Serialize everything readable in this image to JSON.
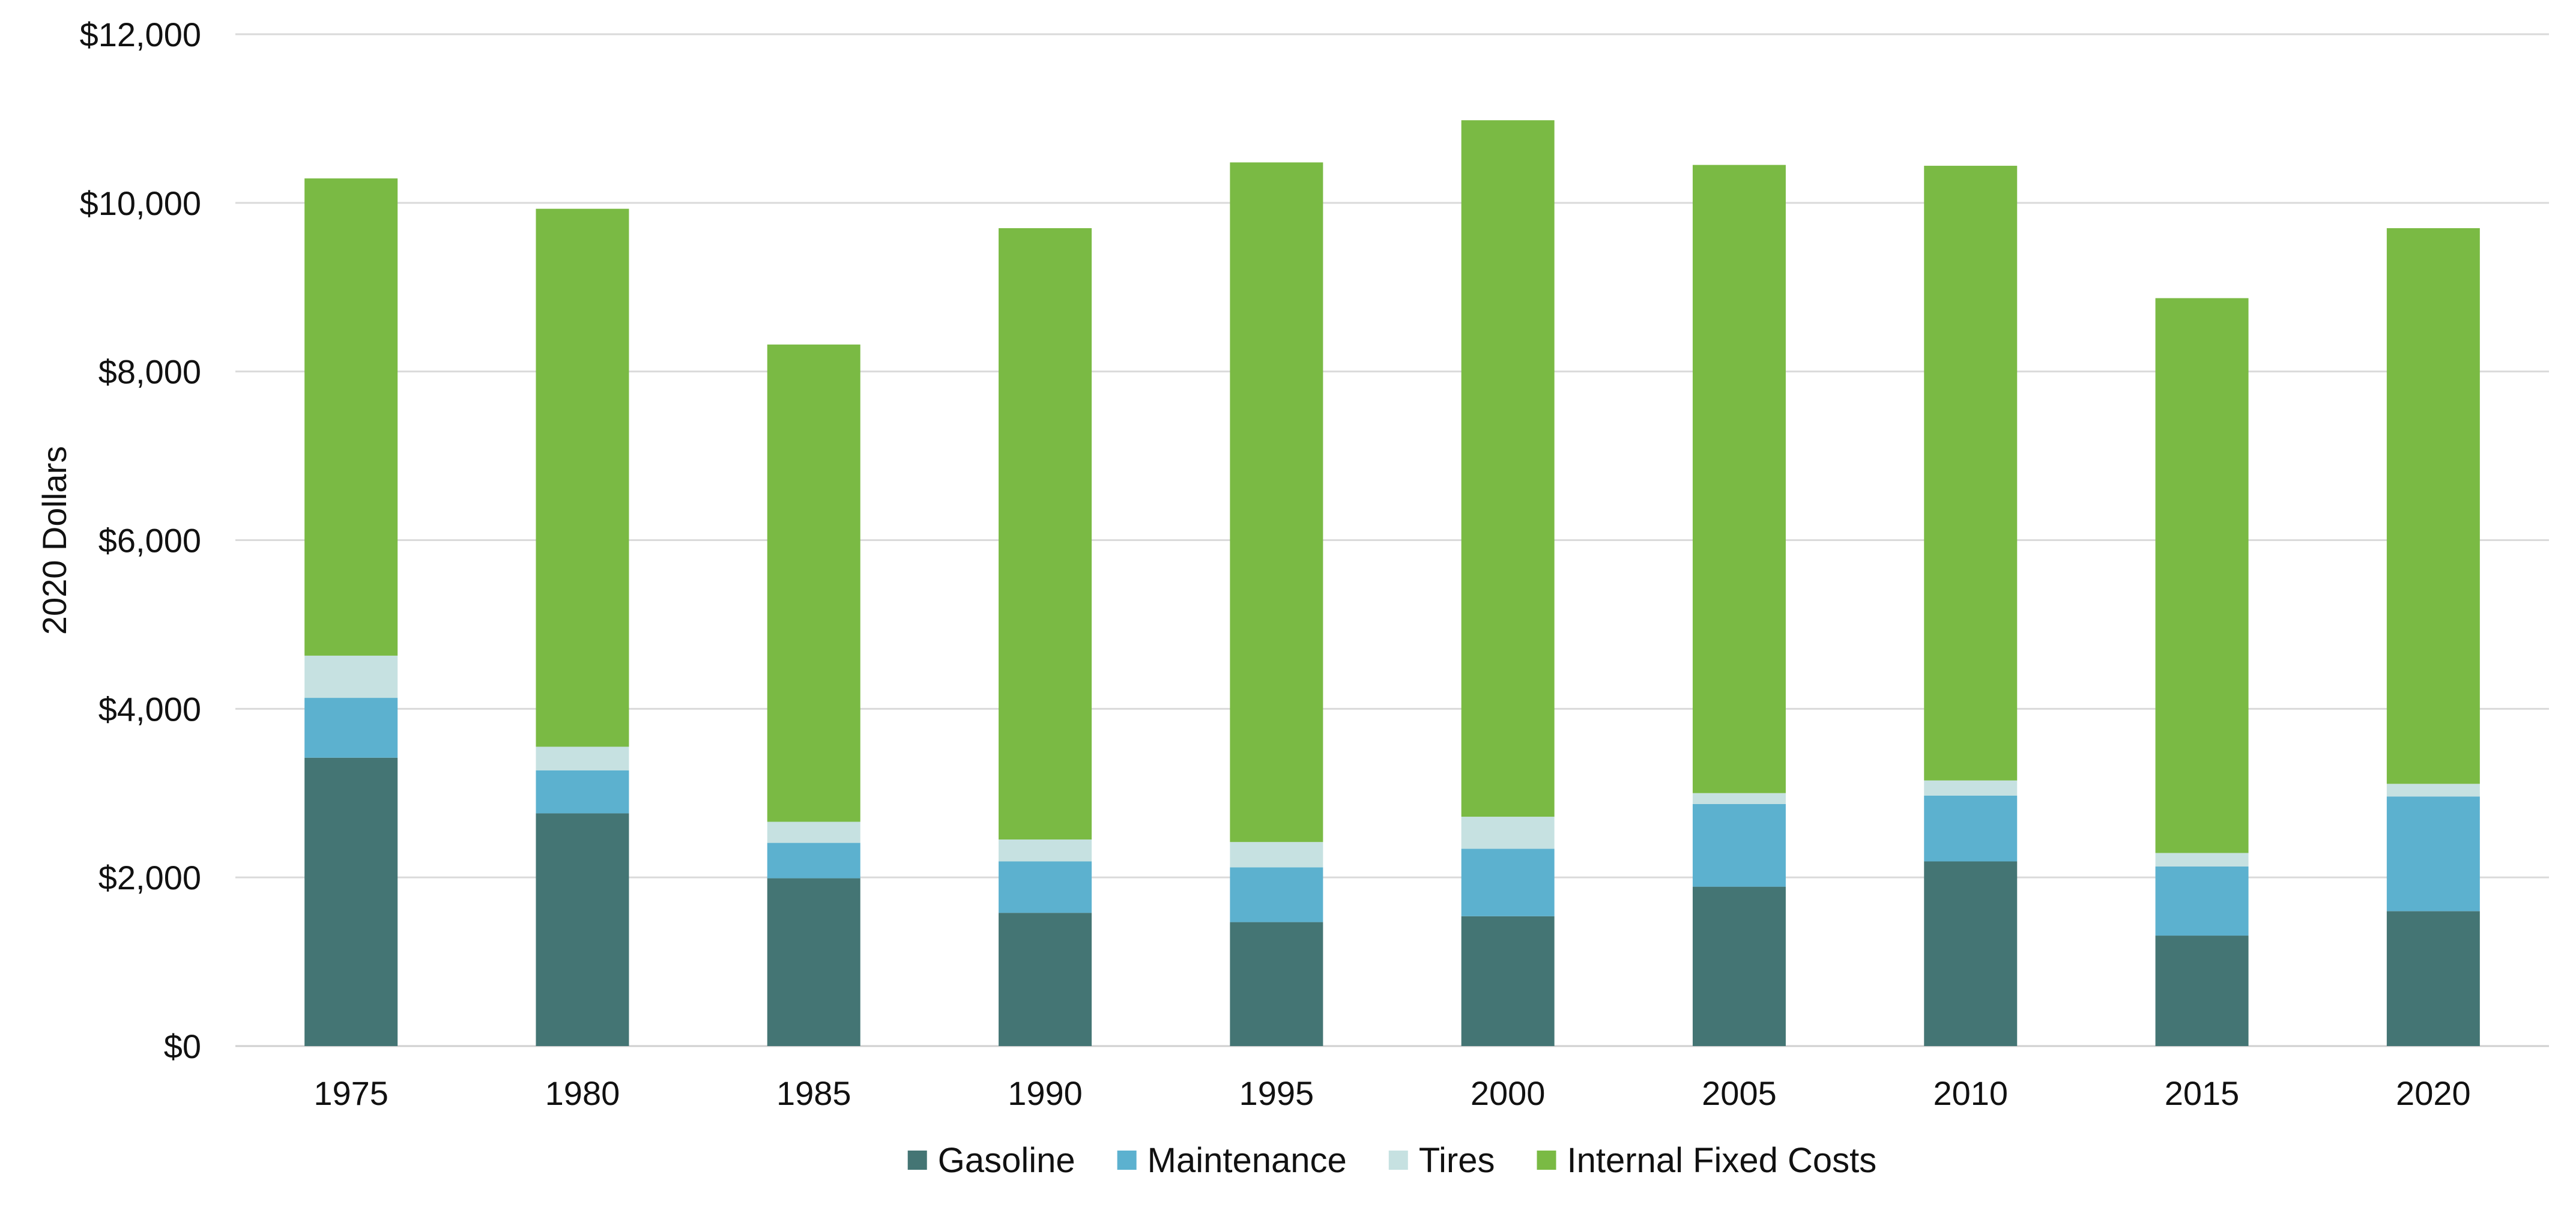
{
  "chart_data": {
    "type": "bar",
    "stacked": true,
    "title": "",
    "xlabel": "",
    "ylabel": "2020 Dollars",
    "ylim": [
      0,
      12000
    ],
    "yticks": [
      0,
      2000,
      4000,
      6000,
      8000,
      10000,
      12000
    ],
    "ytick_labels": [
      "$0",
      "$2,000",
      "$4,000",
      "$6,000",
      "$8,000",
      "$10,000",
      "$12,000"
    ],
    "grid": true,
    "legend_position": "bottom",
    "categories": [
      "1975",
      "1980",
      "1985",
      "1990",
      "1995",
      "2000",
      "2005",
      "2010",
      "2015",
      "2020"
    ],
    "series": [
      {
        "name": "Gasoline",
        "color": "#447574",
        "values": [
          3420,
          2760,
          1990,
          1580,
          1470,
          1540,
          1890,
          2190,
          1310,
          1600
        ]
      },
      {
        "name": "Maintenance",
        "color": "#5cb1cf",
        "values": [
          710,
          510,
          420,
          610,
          650,
          800,
          980,
          780,
          820,
          1360
        ]
      },
      {
        "name": "Tires",
        "color": "#c6e1e1",
        "values": [
          500,
          280,
          250,
          260,
          300,
          380,
          130,
          180,
          160,
          150
        ]
      },
      {
        "name": "Internal Fixed Costs",
        "color": "#7aba44",
        "values": [
          5660,
          6380,
          5660,
          7250,
          8060,
          8260,
          7450,
          7290,
          6580,
          6590
        ]
      }
    ]
  }
}
